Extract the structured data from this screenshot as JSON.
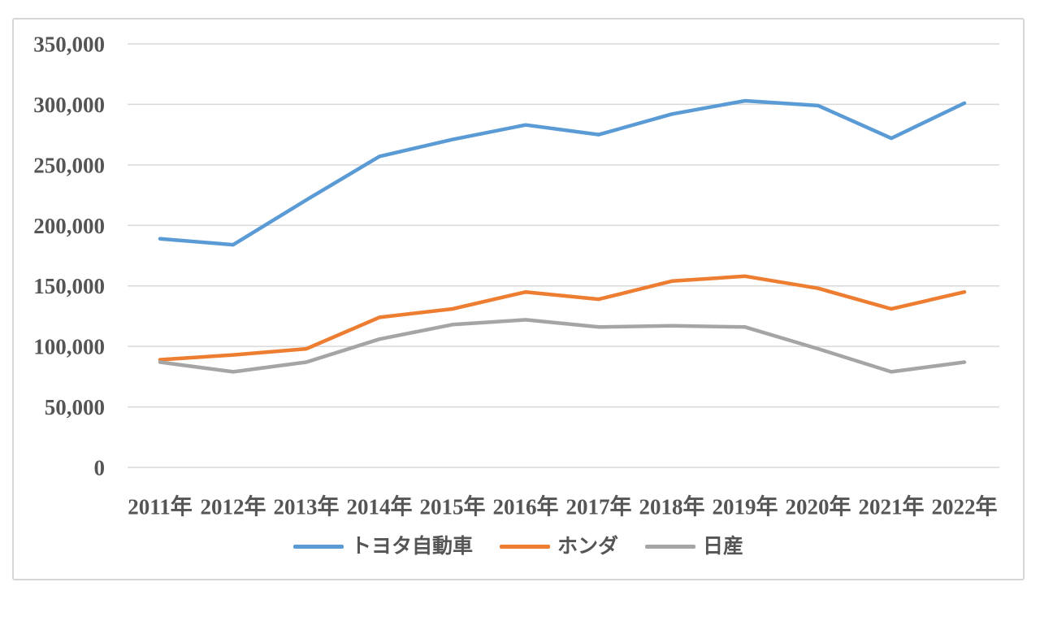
{
  "chart_data": {
    "type": "line",
    "title": "",
    "xlabel": "",
    "ylabel": "",
    "categories": [
      "2011年",
      "2012年",
      "2013年",
      "2014年",
      "2015年",
      "2016年",
      "2017年",
      "2018年",
      "2019年",
      "2020年",
      "2021年",
      "2022年"
    ],
    "series": [
      {
        "key": "toyota",
        "name": "トヨタ自動車",
        "color": "#5B9BD5",
        "values": [
          189000,
          184000,
          221000,
          257000,
          271000,
          283000,
          275000,
          292000,
          303000,
          299000,
          272000,
          301000
        ]
      },
      {
        "key": "honda",
        "name": "ホンダ",
        "color": "#ED7D31",
        "values": [
          89000,
          93000,
          98000,
          124000,
          131000,
          145000,
          139000,
          154000,
          158000,
          148000,
          131000,
          145000
        ]
      },
      {
        "key": "nissan",
        "name": "日産",
        "color": "#A5A5A5",
        "values": [
          87000,
          79000,
          87000,
          106000,
          118000,
          122000,
          116000,
          117000,
          116000,
          98000,
          79000,
          87000
        ]
      }
    ],
    "ylim": [
      0,
      350000
    ],
    "ytick_step": 50000,
    "ytick_labels": [
      "0",
      "50,000",
      "100,000",
      "150,000",
      "200,000",
      "250,000",
      "300,000",
      "350,000"
    ],
    "grid": true,
    "gridline_color": "#d9d9d9",
    "axis_text_color": "#555555",
    "legend_position": "bottom"
  }
}
